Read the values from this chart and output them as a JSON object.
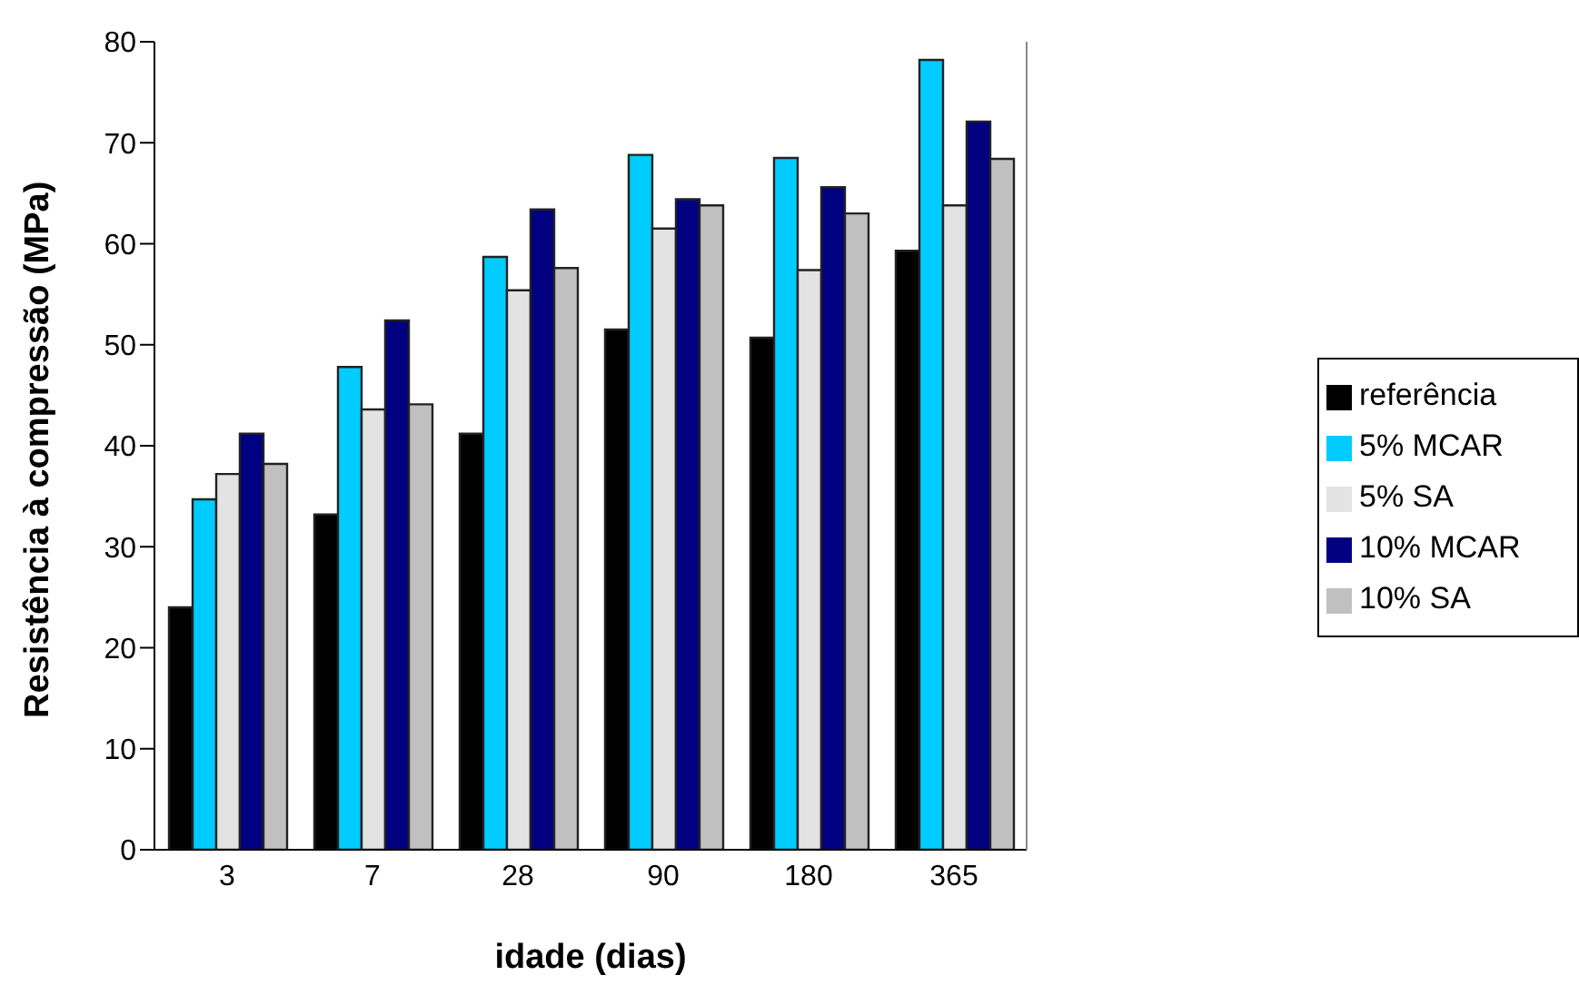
{
  "chart_data": {
    "type": "bar",
    "xlabel": "idade (dias)",
    "ylabel": "Resistência à compressão (MPa)",
    "categories": [
      "3",
      "7",
      "28",
      "90",
      "180",
      "365"
    ],
    "series": [
      {
        "name": "referência",
        "color": "#000000",
        "values": [
          24.0,
          33.2,
          41.2,
          51.5,
          50.7,
          59.3
        ]
      },
      {
        "name": "5% MCAR",
        "color": "#00ccff",
        "values": [
          34.7,
          47.8,
          58.7,
          68.8,
          68.5,
          78.2
        ]
      },
      {
        "name": "5% SA",
        "color": "#e3e3e3",
        "values": [
          37.2,
          43.6,
          55.4,
          61.5,
          57.4,
          63.8
        ]
      },
      {
        "name": "10% MCAR",
        "color": "#000080",
        "values": [
          41.2,
          52.4,
          63.4,
          64.4,
          65.6,
          72.1
        ]
      },
      {
        "name": "10% SA",
        "color": "#c0c0c0",
        "values": [
          38.2,
          44.1,
          57.6,
          63.8,
          63.0,
          68.4
        ]
      }
    ],
    "ylim": [
      0,
      80
    ],
    "yticks": [
      0,
      10,
      20,
      30,
      40,
      50,
      60,
      70,
      80
    ],
    "grid": false,
    "legend": "right"
  }
}
